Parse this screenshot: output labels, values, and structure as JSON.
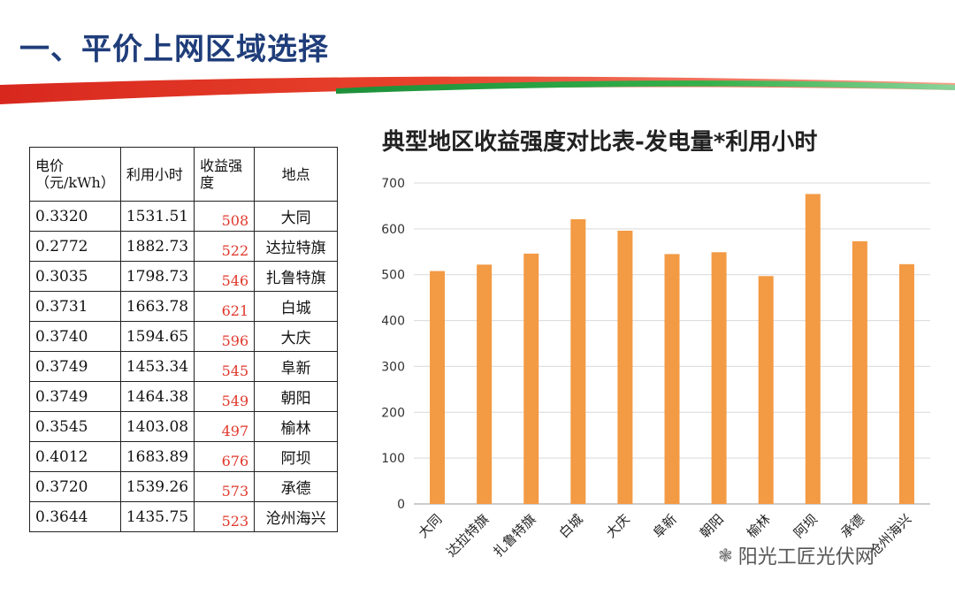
{
  "header": {
    "title": "一、平价上网区域选择"
  },
  "table": {
    "headers": {
      "price": "电价（元/kWh）",
      "hours": "利用小时",
      "revenue": "收益强度",
      "place": "地点"
    },
    "rows": [
      {
        "price": "0.3320",
        "hours": "1531.51",
        "revenue": "508",
        "place": "大同"
      },
      {
        "price": "0.2772",
        "hours": "1882.73",
        "revenue": "522",
        "place": "达拉特旗"
      },
      {
        "price": "0.3035",
        "hours": "1798.73",
        "revenue": "546",
        "place": "扎鲁特旗"
      },
      {
        "price": "0.3731",
        "hours": "1663.78",
        "revenue": "621",
        "place": "白城"
      },
      {
        "price": "0.3740",
        "hours": "1594.65",
        "revenue": "596",
        "place": "大庆"
      },
      {
        "price": "0.3749",
        "hours": "1453.34",
        "revenue": "545",
        "place": "阜新"
      },
      {
        "price": "0.3749",
        "hours": "1464.38",
        "revenue": "549",
        "place": "朝阳"
      },
      {
        "price": "0.3545",
        "hours": "1403.08",
        "revenue": "497",
        "place": "榆林"
      },
      {
        "price": "0.4012",
        "hours": "1683.89",
        "revenue": "676",
        "place": "阿坝"
      },
      {
        "price": "0.3720",
        "hours": "1539.26",
        "revenue": "573",
        "place": "承德"
      },
      {
        "price": "0.3644",
        "hours": "1435.75",
        "revenue": "523",
        "place": "沧州海兴"
      }
    ]
  },
  "chart_data": {
    "type": "bar",
    "title": "典型地区收益强度对比表-发电量*利用小时",
    "categories": [
      "大同",
      "达拉特旗",
      "扎鲁特旗",
      "白城",
      "大庆",
      "阜新",
      "朝阳",
      "榆林",
      "阿坝",
      "承德",
      "沧州海兴"
    ],
    "values": [
      508,
      522,
      546,
      621,
      596,
      545,
      549,
      497,
      676,
      573,
      523
    ],
    "ylim": [
      0,
      700
    ],
    "yticks": [
      0,
      100,
      200,
      300,
      400,
      500,
      600,
      700
    ],
    "grid": true,
    "bar_color": "#f39a44"
  },
  "brand": {
    "text": "阳光工匠光伏网",
    "icon": "wechat-icon"
  }
}
